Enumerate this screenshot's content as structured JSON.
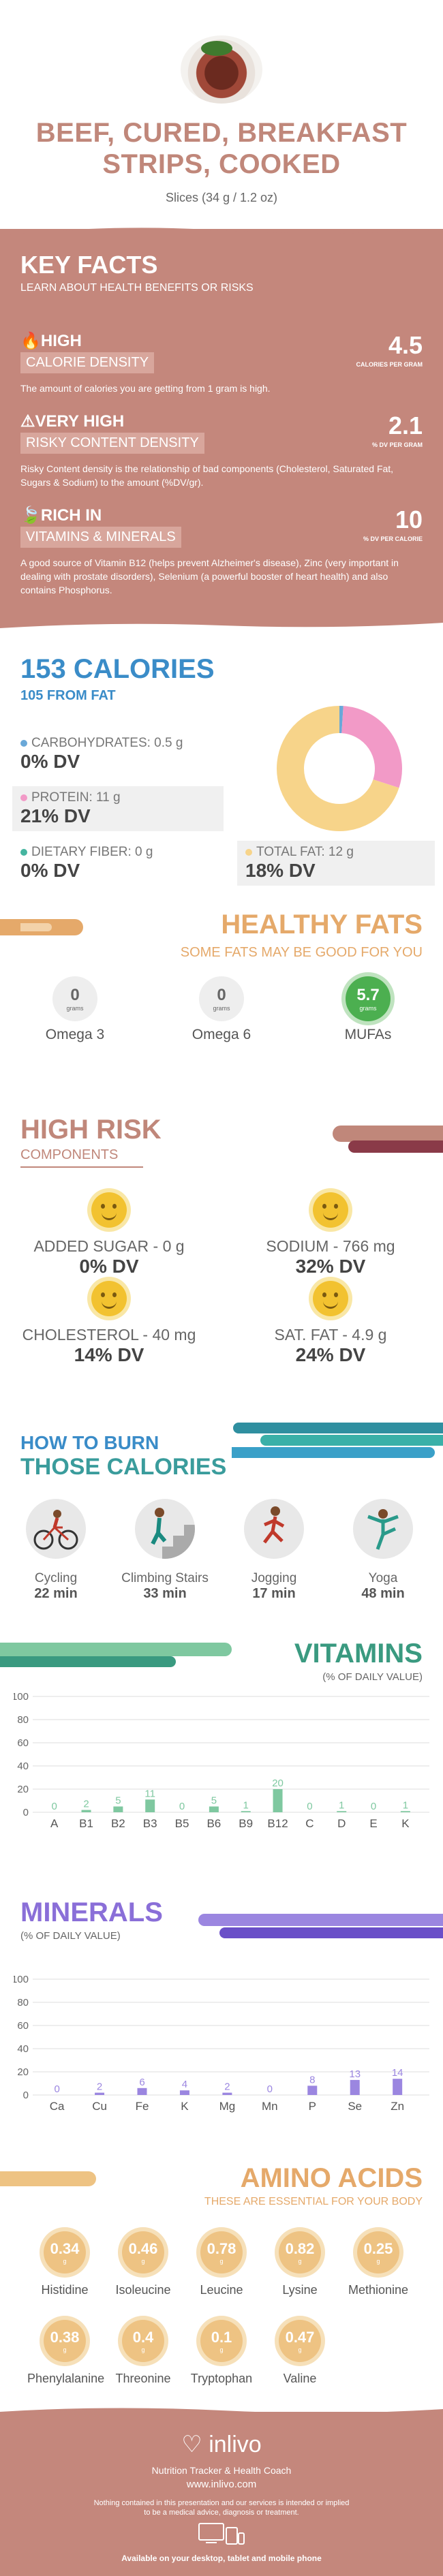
{
  "header": {
    "title_line1": "BEEF, CURED, BREAKFAST",
    "title_line2": "STRIPS, COOKED",
    "serving": "Slices (34 g / 1.2 oz)"
  },
  "key_facts": {
    "title": "KEY FACTS",
    "subtitle": "LEARN ABOUT HEALTH BENEFITS OR RISKS",
    "facts": [
      {
        "level": "HIGH",
        "label": "CALORIE DENSITY",
        "value": "4.5",
        "unit": "CALORIES PER GRAM",
        "desc": "The amount of calories you are getting from 1 gram is high."
      },
      {
        "level": "VERY HIGH",
        "label": "RISKY CONTENT DENSITY",
        "value": "2.1",
        "unit": "% DV PER GRAM",
        "desc": "Risky Content density is the relationship of bad components (Cholesterol, Saturated Fat, Sugars & Sodium) to the amount (%DV/gr)."
      },
      {
        "level": "RICH  IN",
        "label": "VITAMINS & MINERALS",
        "value": "10",
        "unit": "% DV PER CALORIE",
        "desc": "A good source of Vitamin B12 (helps prevent Alzheimer's disease), Zinc (very important in dealing with prostate disorders), Selenium (a powerful booster of heart health) and also contains Phosphorus."
      }
    ]
  },
  "calories": {
    "total": "153 CALORIES",
    "from_fat": "105 FROM FAT",
    "nutrients": [
      {
        "name": "CARBOHYDRATES: 0.5 g",
        "dv": "0% DV",
        "color": "#6aa8d8"
      },
      {
        "name": "PROTEIN: 11 g",
        "dv": "21% DV",
        "color": "#f29ac7"
      },
      {
        "name": "DIETARY FIBER: 0 g",
        "dv": "0% DV",
        "color": "#45b5a0"
      },
      {
        "name": "TOTAL FAT: 12 g",
        "dv": "18% DV",
        "color": "#f7d48a"
      }
    ],
    "donut": [
      {
        "name": "carbs",
        "fraction": 0.01,
        "color": "#6aa8d8"
      },
      {
        "name": "protein",
        "fraction": 0.29,
        "color": "#f29ac7"
      },
      {
        "name": "fat",
        "fraction": 0.7,
        "color": "#f7d48a"
      }
    ]
  },
  "healthy_fats": {
    "title": "HEALTHY FATS",
    "subtitle": "SOME FATS MAY BE GOOD FOR YOU",
    "items": [
      {
        "name": "Omega 3",
        "value": "0",
        "unit": "grams"
      },
      {
        "name": "Omega 6",
        "value": "0",
        "unit": "grams"
      },
      {
        "name": "MUFAs",
        "value": "5.7",
        "unit": "grams"
      }
    ]
  },
  "high_risk": {
    "title": "HIGH RISK",
    "subtitle": "COMPONENTS",
    "items": [
      {
        "name": "ADDED SUGAR - 0 g",
        "dv": "0% DV"
      },
      {
        "name": "SODIUM - 766 mg",
        "dv": "32% DV"
      },
      {
        "name": "CHOLESTEROL - 40 mg",
        "dv": "14% DV"
      },
      {
        "name": "SAT. FAT - 4.9 g",
        "dv": "24% DV"
      }
    ]
  },
  "burn": {
    "title1": "HOW TO BURN",
    "title2": "THOSE CALORIES",
    "activities": [
      {
        "name": "Cycling",
        "time": "22 min"
      },
      {
        "name": "Climbing Stairs",
        "time": "33 min"
      },
      {
        "name": "Jogging",
        "time": "17 min"
      },
      {
        "name": "Yoga",
        "time": "48 min"
      }
    ]
  },
  "vitamins": {
    "title": "VITAMINS",
    "subtitle": "(% OF DAILY VALUE)",
    "chart_data": {
      "type": "bar",
      "categories": [
        "A",
        "B1",
        "B2",
        "B3",
        "B5",
        "B6",
        "B9",
        "B12",
        "C",
        "D",
        "E",
        "K"
      ],
      "values": [
        0,
        2,
        5,
        11,
        0,
        5,
        1,
        20,
        0,
        1,
        0,
        1
      ],
      "ylim": [
        0,
        100
      ],
      "yticks": [
        0,
        20,
        40,
        60,
        80,
        100
      ],
      "color": "#7fc8a0"
    }
  },
  "minerals": {
    "title": "MINERALS",
    "subtitle": "(% OF DAILY VALUE)",
    "chart_data": {
      "type": "bar",
      "categories": [
        "Ca",
        "Cu",
        "Fe",
        "K",
        "Mg",
        "Mn",
        "P",
        "Se",
        "Zn"
      ],
      "values": [
        0,
        2,
        6,
        4,
        2,
        0,
        8,
        13,
        14
      ],
      "ylim": [
        0,
        100
      ],
      "yticks": [
        0,
        20,
        40,
        60,
        80,
        100
      ],
      "color": "#9b86e0"
    }
  },
  "amino": {
    "title": "AMINO ACIDS",
    "subtitle": "THESE ARE ESSENTIAL FOR YOUR BODY",
    "unit": "g",
    "items": [
      {
        "name": "Histidine",
        "value": "0.34"
      },
      {
        "name": "Isoleucine",
        "value": "0.46"
      },
      {
        "name": "Leucine",
        "value": "0.78"
      },
      {
        "name": "Lysine",
        "value": "0.82"
      },
      {
        "name": "Methionine",
        "value": "0.25"
      },
      {
        "name": "Phenylalanine",
        "value": "0.38"
      },
      {
        "name": "Threonine",
        "value": "0.4"
      },
      {
        "name": "Tryptophan",
        "value": "0.1"
      },
      {
        "name": "Valine",
        "value": "0.47"
      }
    ]
  },
  "footer": {
    "logo": "inlivo",
    "tagline": "Nutrition Tracker & Health Coach",
    "url": "www.inlivo.com",
    "disclaimer1": "Nothing contained in this presentation and our services is intended or implied",
    "disclaimer2": "to be a medical advice, diagnosis or treatment.",
    "available": "Available on your desktop, tablet and mobile phone"
  }
}
